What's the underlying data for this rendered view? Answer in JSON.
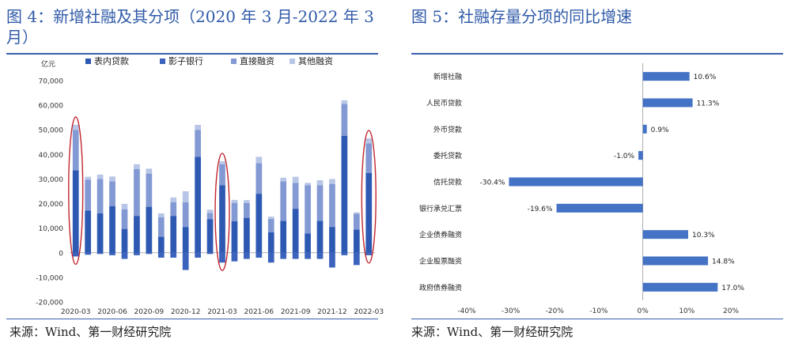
{
  "figure1": {
    "title": "图 4：新增社融及其分项（2020 年 3 月-2022 年 3 月）",
    "source": "来源：Wind、第一财经研究院",
    "unit": "亿元",
    "colors": {
      "loans": "#2e59b3",
      "shadow": "#3b63bd",
      "direct": "#8299d4",
      "other": "#b7c5e6",
      "ellipse": "#c0262e"
    },
    "chart_data": {
      "type": "bar",
      "stacked": true,
      "ylim": [
        -20000,
        70000
      ],
      "yticks": [
        -20000,
        -10000,
        0,
        10000,
        20000,
        30000,
        40000,
        50000,
        60000,
        70000
      ],
      "ytick_labels": [
        "-20,000",
        "-10,000",
        "0",
        "10,000",
        "20,000",
        "30,000",
        "40,000",
        "50,000",
        "60,000",
        "70,000"
      ],
      "xtick_labels": [
        "2020-03",
        "2020-06",
        "2020-09",
        "2020-12",
        "2021-03",
        "2021-06",
        "2021-09",
        "2021-12",
        "2022-03"
      ],
      "xtick_index": [
        0,
        3,
        6,
        9,
        12,
        15,
        18,
        21,
        24
      ],
      "categories": [
        "2020-03",
        "2020-04",
        "2020-05",
        "2020-06",
        "2020-07",
        "2020-08",
        "2020-09",
        "2020-10",
        "2020-11",
        "2020-12",
        "2021-01",
        "2021-02",
        "2021-03",
        "2021-04",
        "2021-05",
        "2021-06",
        "2021-07",
        "2021-08",
        "2021-09",
        "2021-10",
        "2021-11",
        "2021-12",
        "2022-01",
        "2022-02",
        "2022-03"
      ],
      "highlighted": [
        0,
        12,
        24
      ],
      "legend_position": "top",
      "series": [
        {
          "name": "表内贷款",
          "values": [
            33500,
            17200,
            16000,
            19000,
            9700,
            15000,
            18700,
            6500,
            15000,
            10500,
            39000,
            13700,
            27500,
            12800,
            14200,
            24000,
            8300,
            13000,
            17900,
            7900,
            13000,
            10500,
            47500,
            9400,
            32500
          ]
        },
        {
          "name": "影子银行",
          "values": [
            -1500,
            -800,
            -500,
            -1000,
            -2500,
            -1000,
            -500,
            -2000,
            -2000,
            -7000,
            -2000,
            -500,
            -4000,
            -3500,
            -2500,
            -2000,
            -4000,
            -2500,
            -2500,
            -2500,
            -2500,
            -6000,
            -1000,
            -5000,
            -1000
          ]
        },
        {
          "name": "直接融资",
          "values": [
            16500,
            12500,
            14000,
            10000,
            8000,
            19000,
            13500,
            8000,
            5500,
            10000,
            11000,
            2500,
            8500,
            7500,
            6000,
            12500,
            5500,
            16000,
            10500,
            19500,
            14500,
            17500,
            13000,
            6500,
            12000
          ]
        },
        {
          "name": "其他融资",
          "values": [
            2000,
            1200,
            1800,
            2000,
            2200,
            2000,
            2000,
            1500,
            2000,
            4500,
            2000,
            1300,
            1200,
            1200,
            1200,
            2500,
            900,
            1500,
            2500,
            1000,
            2000,
            2000,
            1500,
            500,
            2000
          ]
        }
      ]
    }
  },
  "figure2": {
    "title": "图 5：社融存量分项的同比增速",
    "source": "来源：Wind、第一财经研究院",
    "bar_color": "#4472c4",
    "chart_data": {
      "type": "bar",
      "orientation": "horizontal",
      "categories": [
        "新增社融",
        "人民币贷款",
        "外币贷款",
        "委托贷款",
        "信托贷款",
        "银行承兑汇票",
        "企业债券融资",
        "企业股票融资",
        "政府债券融资"
      ],
      "values": [
        10.6,
        11.3,
        0.9,
        -1.0,
        -30.4,
        -19.6,
        10.3,
        14.8,
        17.0
      ],
      "value_labels": [
        "10.6%",
        "11.3%",
        "0.9%",
        "-1.0%",
        "-30.4%",
        "-19.6%",
        "10.3%",
        "14.8%",
        "17.0%"
      ],
      "xlim": [
        -40,
        20
      ],
      "xticks": [
        -40,
        -30,
        -20,
        -10,
        0,
        10,
        20
      ],
      "xtick_labels": [
        "-40%",
        "-30%",
        "-20%",
        "-10%",
        "0%",
        "10%",
        "20%"
      ]
    }
  }
}
